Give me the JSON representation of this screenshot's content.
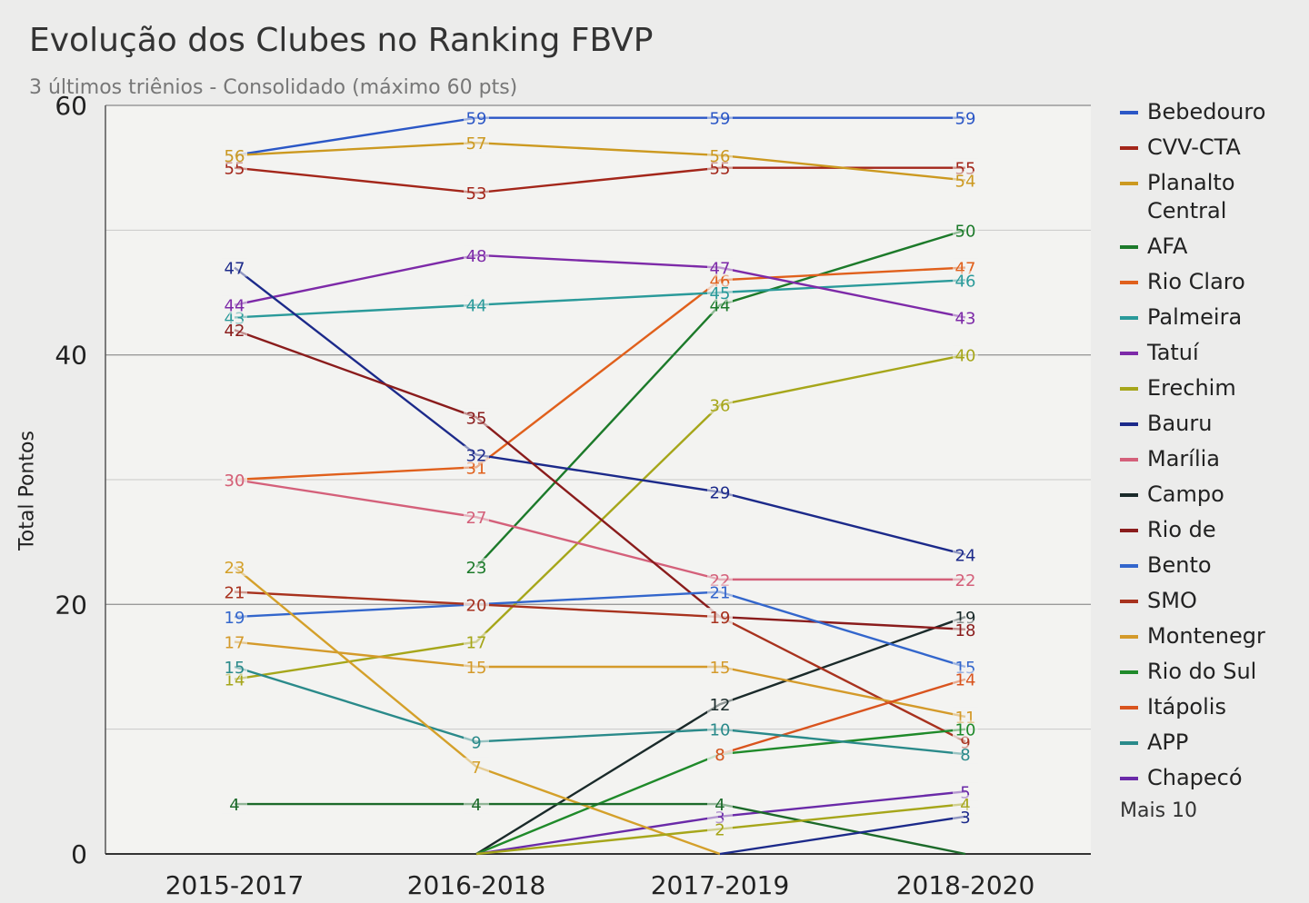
{
  "chart_data": {
    "type": "line",
    "title": "Evolução dos Clubes no Ranking FBVP",
    "subtitle": "3 últimos triênios - Consolidado (máximo 60 pts)",
    "xlabel": "",
    "ylabel": "Total Pontos",
    "categories": [
      "2015-2017",
      "2016-2018",
      "2017-2019",
      "2018-2020"
    ],
    "ylim": [
      0,
      60
    ],
    "yticks": [
      0,
      20,
      40,
      60
    ],
    "grid": true,
    "legend": "right",
    "legend_more": "Mais 10",
    "series": [
      {
        "name": "Bebedouro",
        "color": "#2b57c6",
        "values": [
          56,
          59,
          59,
          59
        ]
      },
      {
        "name": "CVV-CTA",
        "color": "#a3261a",
        "values": [
          55,
          53,
          55,
          55
        ]
      },
      {
        "name": "Planalto Central",
        "color": "#cc9920",
        "values": [
          56,
          57,
          56,
          54
        ]
      },
      {
        "name": "AFA",
        "color": "#1c7a2a",
        "values": [
          null,
          23,
          44,
          50
        ]
      },
      {
        "name": "Rio Claro",
        "color": "#e0601c",
        "values": [
          30,
          31,
          46,
          47
        ]
      },
      {
        "name": "Palmeira",
        "color": "#2a9a9a",
        "values": [
          43,
          44,
          45,
          46
        ]
      },
      {
        "name": "Tatuí",
        "color": "#7d2aa8",
        "values": [
          44,
          48,
          47,
          43
        ]
      },
      {
        "name": "Erechim",
        "color": "#a6a61a",
        "values": [
          14,
          17,
          36,
          40
        ]
      },
      {
        "name": "Bauru",
        "color": "#1c2a8a",
        "values": [
          47,
          32,
          29,
          24
        ]
      },
      {
        "name": "Marília",
        "color": "#d4607a",
        "values": [
          30,
          27,
          22,
          22
        ]
      },
      {
        "name": "Campo",
        "color": "#1a2a2a",
        "values": [
          null,
          0,
          12,
          19
        ]
      },
      {
        "name": "Rio de",
        "color": "#8a1c1c",
        "values": [
          42,
          35,
          19,
          18
        ]
      },
      {
        "name": "Bento",
        "color": "#3366cc",
        "values": [
          19,
          20,
          21,
          15
        ]
      },
      {
        "name": "SMO",
        "color": "#a8321e",
        "values": [
          21,
          20,
          19,
          9
        ]
      },
      {
        "name": "Montenegr",
        "color": "#d49a2a",
        "values": [
          17,
          15,
          15,
          11
        ]
      },
      {
        "name": "Rio do Sul",
        "color": "#1f8a2a",
        "values": [
          null,
          0,
          8,
          10
        ]
      },
      {
        "name": "Itápolis",
        "color": "#d9541e",
        "values": [
          null,
          null,
          8,
          14
        ]
      },
      {
        "name": "APP",
        "color": "#2a8a8a",
        "values": [
          15,
          9,
          10,
          8
        ]
      },
      {
        "name": "Chapecó",
        "color": "#6a2aa8",
        "values": [
          null,
          0,
          3,
          5
        ]
      },
      {
        "name": "",
        "color": "#d4a02a",
        "values": [
          23,
          7,
          0,
          null
        ]
      },
      {
        "name": "",
        "color": "#1c6a2a",
        "values": [
          4,
          4,
          4,
          0
        ]
      },
      {
        "name": "",
        "color": "#a6a61a",
        "values": [
          null,
          0,
          2,
          4
        ]
      },
      {
        "name": "",
        "color": "#1c2a8a",
        "values": [
          null,
          null,
          0,
          3
        ]
      }
    ]
  }
}
